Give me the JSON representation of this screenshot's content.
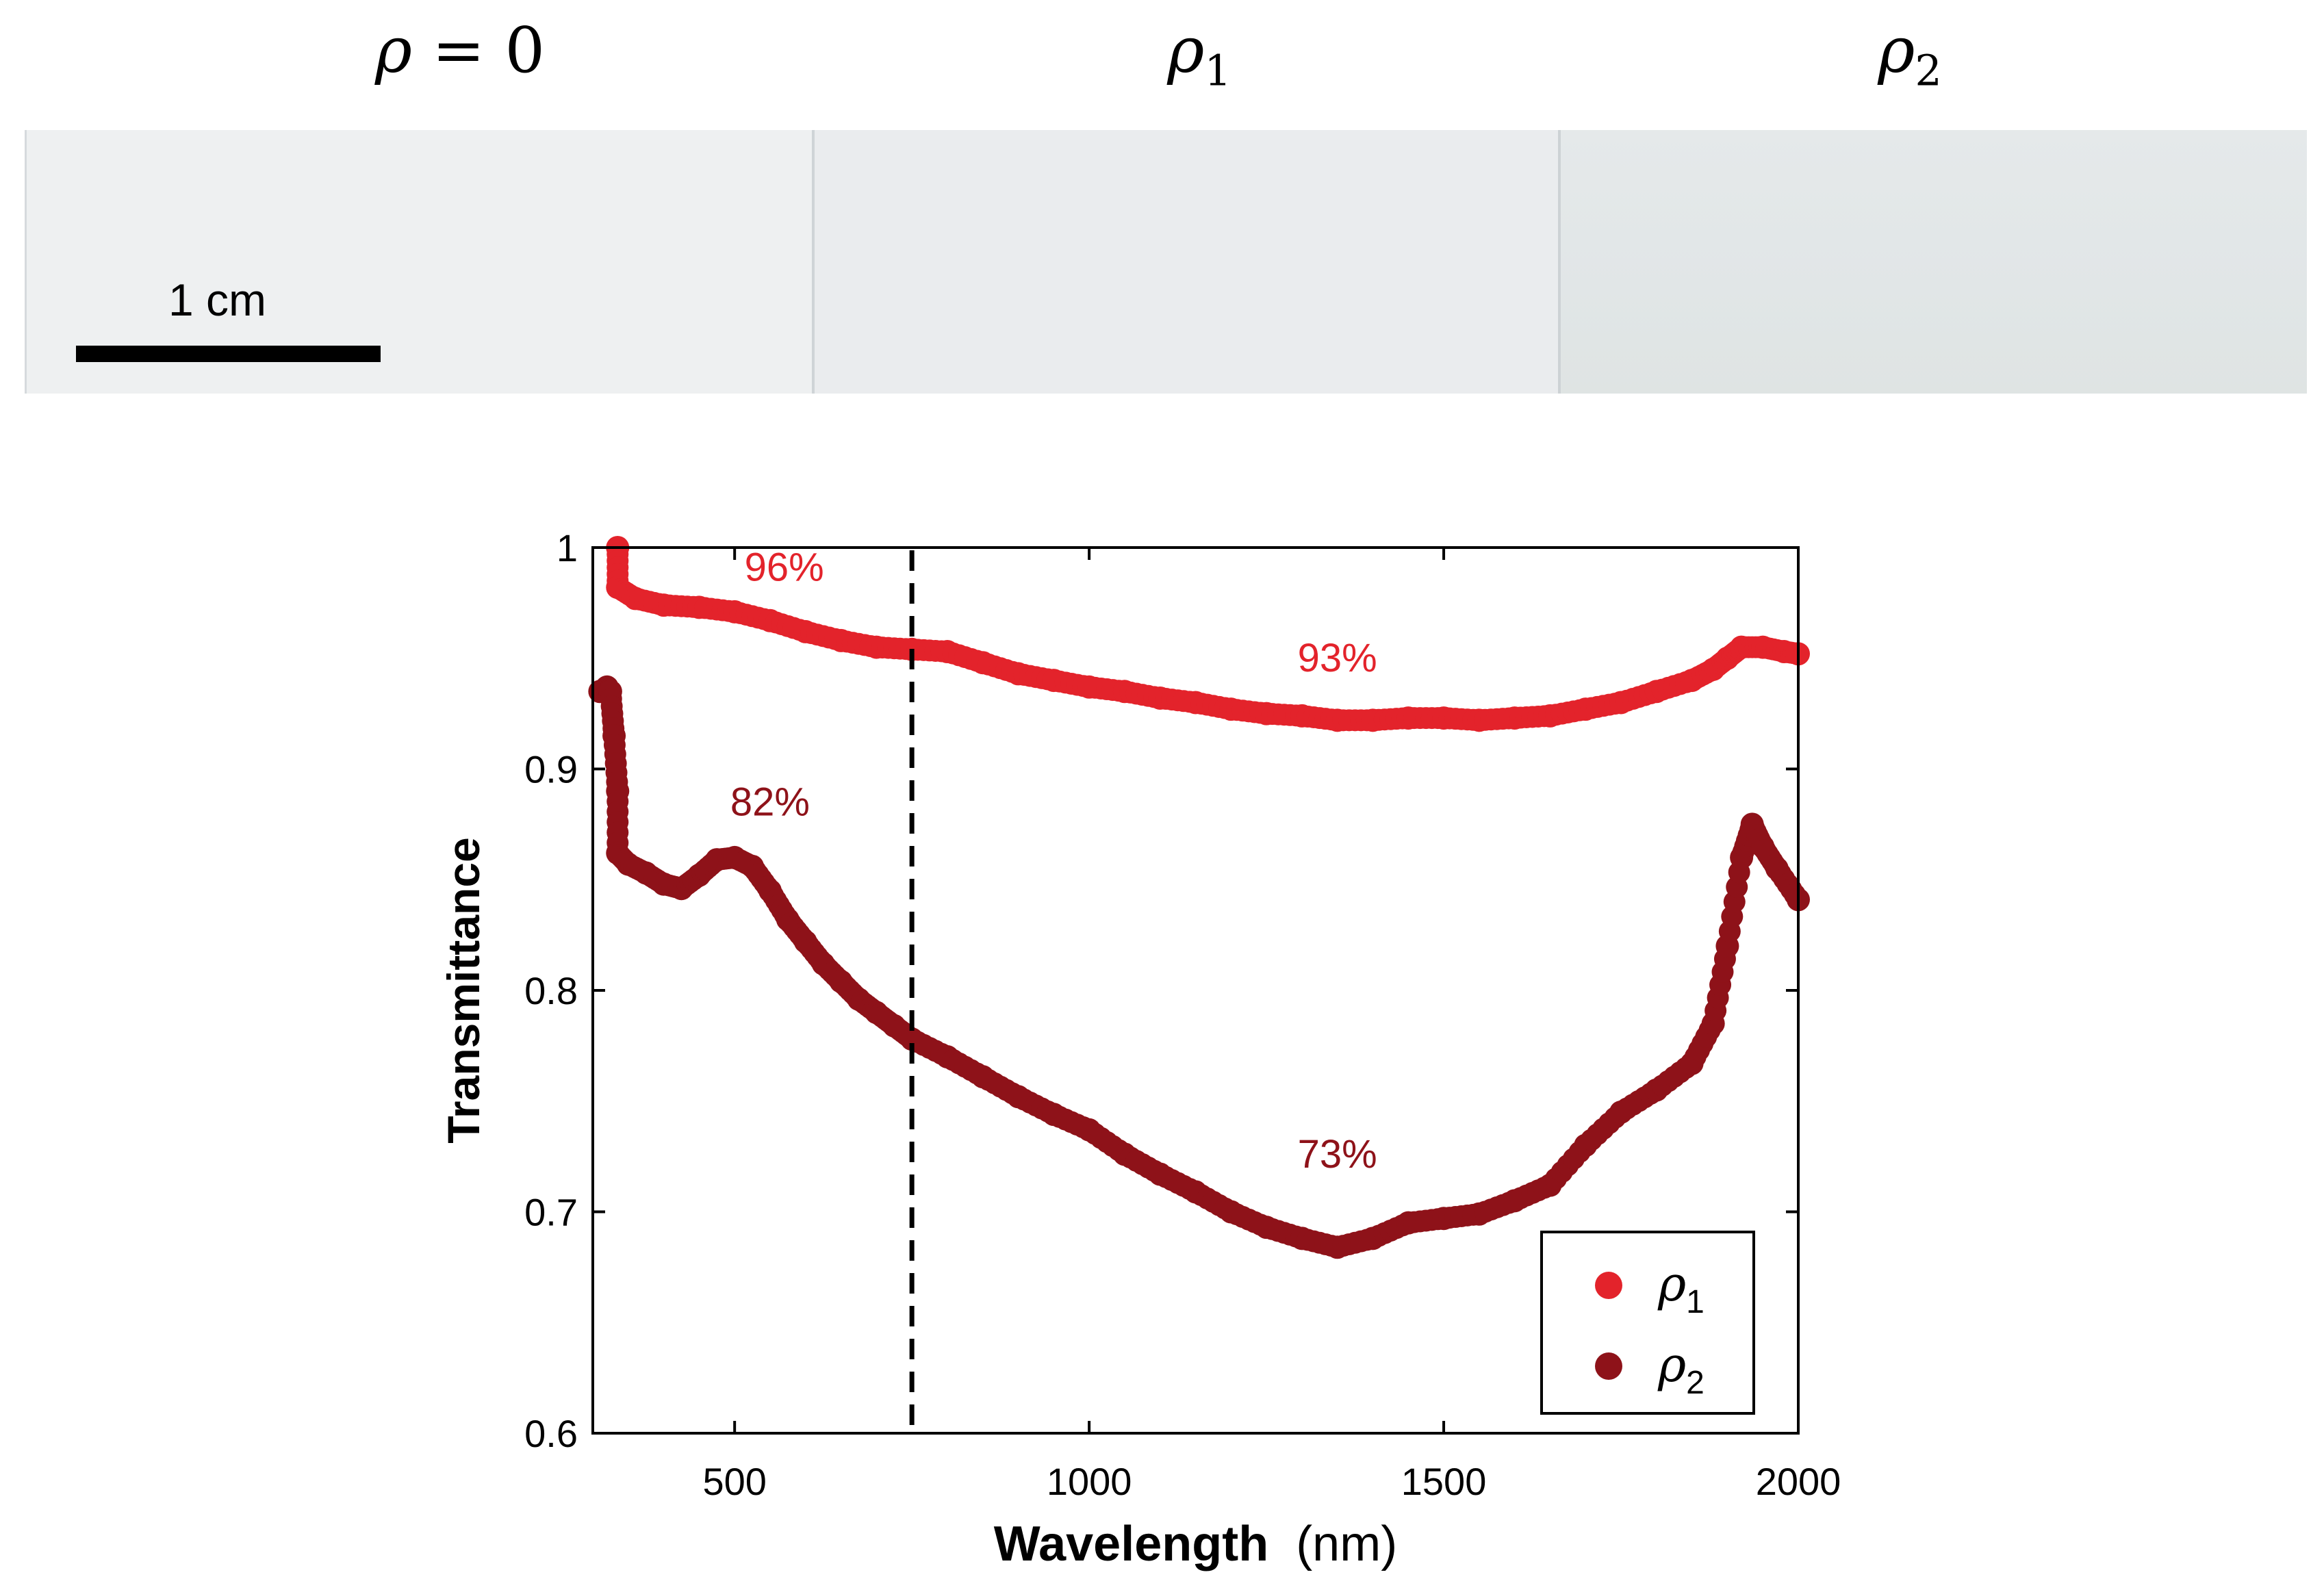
{
  "samples": {
    "labels": [
      {
        "symbol": "ρ",
        "equals": " = 0",
        "sub": ""
      },
      {
        "symbol": "ρ",
        "equals": "",
        "sub": "1"
      },
      {
        "symbol": "ρ",
        "equals": "",
        "sub": "2"
      }
    ],
    "scale_bar_label": "1 cm",
    "panel_colors": [
      "#eef0f1",
      "#eaecee",
      "#e3e7e9"
    ]
  },
  "chart_data": {
    "type": "scatter",
    "xlabel_bold": "Wavelength",
    "xlabel_unit": "(nm)",
    "ylabel": "Transmittance",
    "xlim": [
      300,
      2000
    ],
    "ylim": [
      0.6,
      1.0
    ],
    "xticks": [
      500,
      1000,
      1500,
      2000
    ],
    "xtick_labels": [
      "500",
      "1000",
      "1500",
      "2000"
    ],
    "yticks": [
      0.6,
      0.7,
      0.8,
      0.9,
      1.0
    ],
    "ytick_labels": [
      "0.6",
      "0.7",
      "0.8",
      "0.9",
      "1"
    ],
    "vline_x": 750,
    "legend_position": "bottom-right",
    "series": [
      {
        "name": "ρ1",
        "legend_symbol": "ρ",
        "legend_sub": "1",
        "color": "#e3232b",
        "points": [
          [
            335,
            1.0
          ],
          [
            335,
            0.982
          ],
          [
            360,
            0.977
          ],
          [
            400,
            0.974
          ],
          [
            450,
            0.973
          ],
          [
            500,
            0.971
          ],
          [
            550,
            0.967
          ],
          [
            600,
            0.962
          ],
          [
            650,
            0.958
          ],
          [
            700,
            0.955
          ],
          [
            750,
            0.954
          ],
          [
            800,
            0.953
          ],
          [
            850,
            0.948
          ],
          [
            900,
            0.943
          ],
          [
            950,
            0.94
          ],
          [
            1000,
            0.937
          ],
          [
            1050,
            0.935
          ],
          [
            1100,
            0.932
          ],
          [
            1150,
            0.93
          ],
          [
            1200,
            0.927
          ],
          [
            1250,
            0.925
          ],
          [
            1300,
            0.924
          ],
          [
            1350,
            0.922
          ],
          [
            1400,
            0.922
          ],
          [
            1450,
            0.923
          ],
          [
            1500,
            0.923
          ],
          [
            1550,
            0.922
          ],
          [
            1600,
            0.923
          ],
          [
            1650,
            0.924
          ],
          [
            1700,
            0.927
          ],
          [
            1750,
            0.93
          ],
          [
            1800,
            0.935
          ],
          [
            1850,
            0.94
          ],
          [
            1880,
            0.945
          ],
          [
            1900,
            0.95
          ],
          [
            1920,
            0.955
          ],
          [
            1950,
            0.955
          ],
          [
            1980,
            0.953
          ],
          [
            2000,
            0.952
          ]
        ]
      },
      {
        "name": "ρ2",
        "legend_symbol": "ρ",
        "legend_sub": "2",
        "color": "#8e1219",
        "points": [
          [
            310,
            0.935
          ],
          [
            320,
            0.937
          ],
          [
            325,
            0.935
          ],
          [
            330,
            0.915
          ],
          [
            335,
            0.89
          ],
          [
            335,
            0.862
          ],
          [
            350,
            0.857
          ],
          [
            375,
            0.853
          ],
          [
            400,
            0.848
          ],
          [
            425,
            0.846
          ],
          [
            450,
            0.852
          ],
          [
            475,
            0.859
          ],
          [
            500,
            0.86
          ],
          [
            525,
            0.856
          ],
          [
            550,
            0.845
          ],
          [
            575,
            0.832
          ],
          [
            600,
            0.822
          ],
          [
            625,
            0.812
          ],
          [
            650,
            0.804
          ],
          [
            675,
            0.796
          ],
          [
            700,
            0.79
          ],
          [
            725,
            0.784
          ],
          [
            750,
            0.778
          ],
          [
            800,
            0.77
          ],
          [
            850,
            0.761
          ],
          [
            900,
            0.752
          ],
          [
            950,
            0.744
          ],
          [
            1000,
            0.737
          ],
          [
            1050,
            0.726
          ],
          [
            1100,
            0.717
          ],
          [
            1150,
            0.709
          ],
          [
            1200,
            0.7
          ],
          [
            1250,
            0.693
          ],
          [
            1300,
            0.688
          ],
          [
            1350,
            0.684
          ],
          [
            1400,
            0.688
          ],
          [
            1450,
            0.695
          ],
          [
            1500,
            0.697
          ],
          [
            1550,
            0.699
          ],
          [
            1600,
            0.705
          ],
          [
            1650,
            0.712
          ],
          [
            1700,
            0.73
          ],
          [
            1750,
            0.745
          ],
          [
            1800,
            0.755
          ],
          [
            1850,
            0.767
          ],
          [
            1880,
            0.785
          ],
          [
            1900,
            0.82
          ],
          [
            1920,
            0.86
          ],
          [
            1935,
            0.875
          ],
          [
            1950,
            0.865
          ],
          [
            1970,
            0.855
          ],
          [
            2000,
            0.841
          ]
        ]
      }
    ],
    "annotations": [
      {
        "text": "96%",
        "x": 570,
        "y": 0.985,
        "series": 0
      },
      {
        "text": "93%",
        "x": 1350,
        "y": 0.944,
        "series": 0
      },
      {
        "text": "82%",
        "x": 550,
        "y": 0.879,
        "series": 1
      },
      {
        "text": "73%",
        "x": 1350,
        "y": 0.72,
        "series": 1
      }
    ]
  }
}
